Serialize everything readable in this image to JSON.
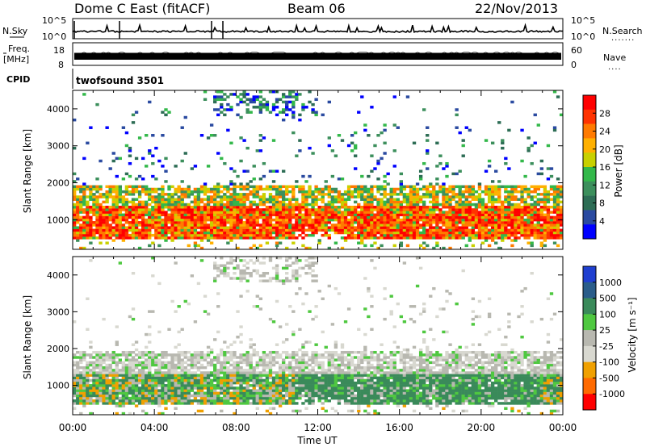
{
  "header": {
    "title": "Dome C East (fitACF)",
    "beam": "Beam 06",
    "date": "22/Nov/2013"
  },
  "top_panels": {
    "nsky_label": "N.Sky",
    "nsearch_label": "N.Search",
    "nsky_ticks": [
      "10^5",
      "10^0"
    ],
    "nsearch_ticks": [
      "10^5",
      "10^0"
    ],
    "freq_label_1": "Freq.",
    "freq_label_2": "[MHz]",
    "freq_ticks": [
      "18",
      "8"
    ],
    "nave_label": "Nave",
    "nave_ticks": [
      "60",
      "0"
    ],
    "cpid_label": "CPID",
    "cpid_value": "twofsound 3501"
  },
  "colorbars": {
    "power": {
      "label": "Power [dB]",
      "ticks": [
        "28",
        "24",
        "20",
        "16",
        "12",
        "8",
        "4"
      ],
      "colors": [
        "#ff0000",
        "#ff3300",
        "#ff7a00",
        "#ffb000",
        "#c8d000",
        "#33b84a",
        "#3c8f5c",
        "#2d6d55",
        "#2a4aa0",
        "#0000ff"
      ]
    },
    "velocity": {
      "label": "Velocity [m s⁻¹]",
      "ticks": [
        "1000",
        "500",
        "100",
        "25",
        "-25",
        "-100",
        "-500",
        "-1000"
      ],
      "colors": [
        "#1f3fd0",
        "#2a5d8a",
        "#3a8a5a",
        "#4fc840",
        "#b8b8b0",
        "#d8d8d0",
        "#f0a000",
        "#ff6a00",
        "#ff0000"
      ]
    }
  },
  "chart_data": [
    {
      "type": "heatmap",
      "title": "Power",
      "ylabel": "Slant Range [km]",
      "ylim": [
        200,
        4500
      ],
      "yticks": [
        1000,
        2000,
        3000,
        4000
      ],
      "xlabel": "Time UT",
      "xticks": [
        "00:00",
        "04:00",
        "08:00",
        "12:00",
        "16:00",
        "20:00",
        "00:00"
      ],
      "colorbar": "Power [dB]",
      "value_range": [
        0,
        30
      ]
    },
    {
      "type": "heatmap",
      "title": "Velocity",
      "ylabel": "Slant Range [km]",
      "ylim": [
        200,
        4500
      ],
      "yticks": [
        1000,
        2000,
        3000,
        4000
      ],
      "xlabel": "Time UT",
      "xticks": [
        "00:00",
        "04:00",
        "08:00",
        "12:00",
        "16:00",
        "20:00",
        "00:00"
      ],
      "colorbar": "Velocity [m s⁻¹]",
      "value_range": [
        -1000,
        1000
      ]
    }
  ]
}
